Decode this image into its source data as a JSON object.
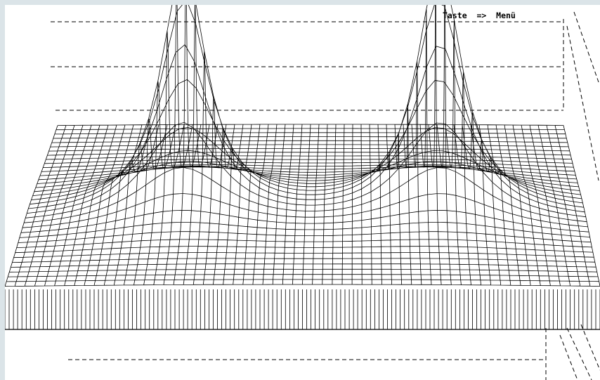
{
  "screen": {
    "hint_text": "Taste  =>  Menü"
  },
  "surface": {
    "description_icon": "wireframe-surface-icon",
    "colors": {
      "background": "#ffffff",
      "frame": "#dbe4e8",
      "lines": "#000000"
    }
  }
}
